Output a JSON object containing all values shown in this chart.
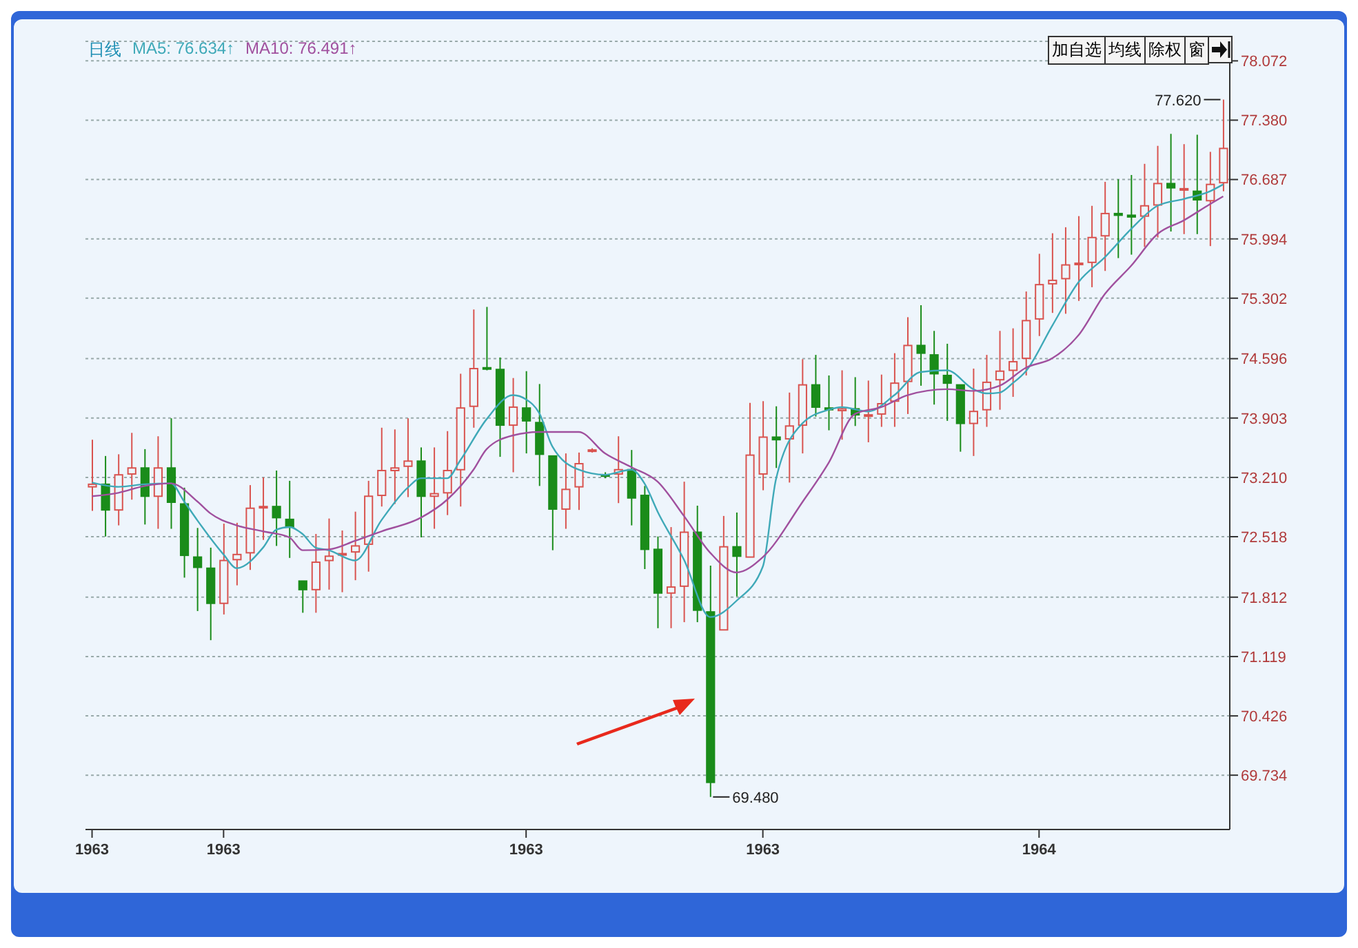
{
  "chart_data": {
    "type": "candlestick",
    "title": "日线",
    "legend": "top left",
    "grid": "y",
    "categories": [
      "1963",
      null,
      null,
      null,
      null,
      null,
      null,
      null,
      null,
      null,
      "1963",
      null,
      null,
      null,
      null,
      null,
      null,
      null,
      null,
      null,
      null,
      null,
      null,
      null,
      null,
      null,
      null,
      null,
      null,
      null,
      null,
      null,
      null,
      "1963",
      null,
      null,
      null,
      null,
      null,
      null,
      null,
      null,
      null,
      null,
      null,
      null,
      null,
      null,
      null,
      null,
      null,
      "1963",
      null,
      null,
      null,
      null,
      null,
      null,
      null,
      null,
      null,
      null,
      null,
      null,
      null,
      null,
      null,
      null,
      null,
      null,
      null,
      null,
      "1964",
      null,
      null,
      null,
      null,
      null,
      null,
      null,
      null,
      null,
      null,
      null,
      null,
      null,
      null
    ],
    "ohlc": [
      [
        73.1,
        73.65,
        72.82,
        73.13
      ],
      [
        73.13,
        73.46,
        72.52,
        72.83
      ],
      [
        72.83,
        73.48,
        72.65,
        73.24
      ],
      [
        73.25,
        73.73,
        72.95,
        73.32
      ],
      [
        73.32,
        73.54,
        72.66,
        72.99
      ],
      [
        72.99,
        73.69,
        72.61,
        73.32
      ],
      [
        73.32,
        73.9,
        72.61,
        72.92
      ],
      [
        72.9,
        73.09,
        72.04,
        72.3
      ],
      [
        72.28,
        72.62,
        71.65,
        72.16
      ],
      [
        72.15,
        72.39,
        71.31,
        71.74
      ],
      [
        71.74,
        72.67,
        71.61,
        72.24
      ],
      [
        72.25,
        72.68,
        71.95,
        72.31
      ],
      [
        72.33,
        73.12,
        72.13,
        72.85
      ],
      [
        72.86,
        73.21,
        72.48,
        72.87
      ],
      [
        72.87,
        73.29,
        72.41,
        72.74
      ],
      [
        72.72,
        73.17,
        72.27,
        72.63
      ],
      [
        72.0,
        72.0,
        71.63,
        71.9
      ],
      [
        71.9,
        72.55,
        71.63,
        72.22
      ],
      [
        72.24,
        72.73,
        71.9,
        72.29
      ],
      [
        72.31,
        72.59,
        71.87,
        72.32
      ],
      [
        72.34,
        72.81,
        72.01,
        72.41
      ],
      [
        72.43,
        73.17,
        72.11,
        72.99
      ],
      [
        73.0,
        73.79,
        72.87,
        73.29
      ],
      [
        73.29,
        73.77,
        72.9,
        73.32
      ],
      [
        73.34,
        73.9,
        72.98,
        73.4
      ],
      [
        73.4,
        73.56,
        72.51,
        72.99
      ],
      [
        72.99,
        73.56,
        72.61,
        73.02
      ],
      [
        73.03,
        73.75,
        72.77,
        73.29
      ],
      [
        73.3,
        74.42,
        72.87,
        74.02
      ],
      [
        74.04,
        75.17,
        73.79,
        74.48
      ],
      [
        74.49,
        75.2,
        74.46,
        74.48
      ],
      [
        74.47,
        74.61,
        73.45,
        73.82
      ],
      [
        73.82,
        74.37,
        73.27,
        74.03
      ],
      [
        74.02,
        74.45,
        73.49,
        73.87
      ],
      [
        73.85,
        74.3,
        73.11,
        73.48
      ],
      [
        73.46,
        73.46,
        72.36,
        72.84
      ],
      [
        72.84,
        73.49,
        72.61,
        73.07
      ],
      [
        73.1,
        73.5,
        72.83,
        73.37
      ],
      [
        73.52,
        73.55,
        73.5,
        73.53
      ],
      [
        73.24,
        73.27,
        73.2,
        73.23
      ],
      [
        73.25,
        73.69,
        72.91,
        73.3
      ],
      [
        73.3,
        73.53,
        72.65,
        72.97
      ],
      [
        73.0,
        73.11,
        72.14,
        72.37
      ],
      [
        72.37,
        72.52,
        71.45,
        71.86
      ],
      [
        71.86,
        72.63,
        71.45,
        71.93
      ],
      [
        71.94,
        73.16,
        71.52,
        72.57
      ],
      [
        72.57,
        72.88,
        71.52,
        71.66
      ],
      [
        71.64,
        72.18,
        69.48,
        69.65
      ],
      [
        71.43,
        72.76,
        71.43,
        72.4
      ],
      [
        72.4,
        72.8,
        71.82,
        72.29
      ],
      [
        72.28,
        74.08,
        72.28,
        73.47
      ],
      [
        73.25,
        74.1,
        73.06,
        73.68
      ],
      [
        73.68,
        74.04,
        73.32,
        73.65
      ],
      [
        73.66,
        74.2,
        73.15,
        73.81
      ],
      [
        73.82,
        74.59,
        73.49,
        74.29
      ],
      [
        74.29,
        74.64,
        73.92,
        74.03
      ],
      [
        74.02,
        74.4,
        73.76,
        74.0
      ],
      [
        73.99,
        74.46,
        73.65,
        74.01
      ],
      [
        74.01,
        74.38,
        73.81,
        73.94
      ],
      [
        73.93,
        74.34,
        73.62,
        73.94
      ],
      [
        73.95,
        74.41,
        73.8,
        74.07
      ],
      [
        74.1,
        74.66,
        73.8,
        74.31
      ],
      [
        74.33,
        75.08,
        73.95,
        74.75
      ],
      [
        74.75,
        75.22,
        74.28,
        74.66
      ],
      [
        74.64,
        74.92,
        74.06,
        74.42
      ],
      [
        74.4,
        74.77,
        73.87,
        74.31
      ],
      [
        74.29,
        74.29,
        73.51,
        73.84
      ],
      [
        73.84,
        74.48,
        73.46,
        73.98
      ],
      [
        74.0,
        74.64,
        73.8,
        74.32
      ],
      [
        74.35,
        74.92,
        74.0,
        74.45
      ],
      [
        74.46,
        74.95,
        74.15,
        74.56
      ],
      [
        74.6,
        75.38,
        74.4,
        75.04
      ],
      [
        75.06,
        75.82,
        74.86,
        75.46
      ],
      [
        75.47,
        76.06,
        75.13,
        75.51
      ],
      [
        75.53,
        76.13,
        75.12,
        75.69
      ],
      [
        75.7,
        76.26,
        75.27,
        75.71
      ],
      [
        75.72,
        76.38,
        75.43,
        76.01
      ],
      [
        76.03,
        76.66,
        75.62,
        76.29
      ],
      [
        76.29,
        76.69,
        75.77,
        76.27
      ],
      [
        76.27,
        76.74,
        75.81,
        76.25
      ],
      [
        76.26,
        76.87,
        75.9,
        76.38
      ],
      [
        76.39,
        77.08,
        76.01,
        76.64
      ],
      [
        76.64,
        77.22,
        76.08,
        76.59
      ],
      [
        76.57,
        77.1,
        76.05,
        76.58
      ],
      [
        76.55,
        77.21,
        76.05,
        76.45
      ],
      [
        76.44,
        77.01,
        75.91,
        76.63
      ],
      [
        76.65,
        77.62,
        76.55,
        77.05
      ]
    ],
    "colors": [
      "#d9534f",
      "#1a8c1a",
      "#d9534f",
      "#d9534f",
      "#1a8c1a",
      "#d9534f",
      "#1a8c1a",
      "#1a8c1a",
      "#1a8c1a",
      "#1a8c1a",
      "#d9534f",
      "#d9534f",
      "#d9534f",
      "#d9534f",
      "#1a8c1a",
      "#1a8c1a",
      "#1a8c1a",
      "#d9534f",
      "#d9534f",
      "#d9534f",
      "#d9534f",
      "#d9534f",
      "#d9534f",
      "#d9534f",
      "#d9534f",
      "#1a8c1a",
      "#d9534f",
      "#d9534f",
      "#d9534f",
      "#d9534f",
      "#1a8c1a",
      "#1a8c1a",
      "#d9534f",
      "#1a8c1a",
      "#1a8c1a",
      "#1a8c1a",
      "#d9534f",
      "#d9534f",
      "#d9534f",
      "#1a8c1a",
      "#d9534f",
      "#1a8c1a",
      "#1a8c1a",
      "#1a8c1a",
      "#d9534f",
      "#d9534f",
      "#1a8c1a",
      "#1a8c1a",
      "#d9534f",
      "#1a8c1a",
      "#d9534f",
      "#d9534f",
      "#1a8c1a",
      "#d9534f",
      "#d9534f",
      "#1a8c1a",
      "#1a8c1a",
      "#d9534f",
      "#1a8c1a",
      "#d9534f",
      "#d9534f",
      "#d9534f",
      "#d9534f",
      "#1a8c1a",
      "#1a8c1a",
      "#1a8c1a",
      "#1a8c1a",
      "#d9534f",
      "#d9534f",
      "#d9534f",
      "#d9534f",
      "#d9534f",
      "#d9534f",
      "#d9534f",
      "#d9534f",
      "#d9534f",
      "#d9534f",
      "#d9534f",
      "#1a8c1a",
      "#1a8c1a",
      "#d9534f",
      "#d9534f",
      "#1a8c1a",
      "#d9534f",
      "#1a8c1a",
      "#d9534f",
      "#d9534f"
    ],
    "series": [
      {
        "name": "MA5: 76.634↑",
        "type": "line",
        "color": "#3fa9b8",
        "values": [
          73.15,
          null,
          73.1,
          null,
          73.13,
          null,
          73.14,
          72.93,
          72.71,
          null,
          72.31,
          72.15,
          null,
          72.39,
          72.6,
          72.63,
          72.55,
          72.39,
          72.36,
          null,
          72.24,
          null,
          72.71,
          null,
          73.09,
          73.2,
          null,
          73.2,
          73.41,
          null,
          73.89,
          null,
          74.17,
          74.12,
          73.96,
          73.57,
          null,
          73.3,
          null,
          73.24,
          null,
          73.3,
          73.14,
          72.81,
          null,
          72.25,
          null,
          71.58,
          null,
          71.77,
          null,
          72.17,
          73.19,
          null,
          73.84,
          null,
          74.0,
          74.03,
          null,
          73.98,
          null,
          74.17,
          null,
          74.44,
          null,
          74.46,
          null,
          74.24,
          74.19,
          74.2,
          74.31,
          74.45,
          null,
          74.98,
          null,
          75.49,
          null,
          75.78,
          null,
          76.11,
          null,
          76.38,
          null,
          76.46,
          null,
          76.55,
          76.63
        ]
      },
      {
        "name": "MA10: 76.491↑",
        "type": "line",
        "color": "#a0509e",
        "values": [
          72.99,
          null,
          73.03,
          null,
          73.11,
          null,
          73.14,
          null,
          72.93,
          72.79,
          null,
          72.65,
          null,
          72.58,
          null,
          72.51,
          72.36,
          null,
          72.37,
          null,
          72.47,
          null,
          72.58,
          null,
          null,
          72.74,
          null,
          72.95,
          null,
          73.3,
          73.54,
          null,
          73.7,
          null,
          73.74,
          null,
          null,
          73.74,
          null,
          73.49,
          null,
          73.33,
          null,
          73.16,
          null,
          72.76,
          null,
          72.33,
          null,
          72.1,
          null,
          72.28,
          null,
          null,
          72.92,
          null,
          73.38,
          null,
          73.95,
          null,
          74.03,
          null,
          74.17,
          null,
          null,
          74.24,
          null,
          74.22,
          null,
          74.28,
          null,
          74.49,
          null,
          74.6,
          null,
          74.87,
          null,
          75.35,
          null,
          75.68,
          null,
          76.05,
          null,
          76.21,
          null,
          76.4,
          76.49
        ]
      }
    ],
    "ylim": [
      69.1,
      78.3
    ],
    "yticks": [
      78.072,
      {
        "value": 77.38,
        "label": "77.380"
      },
      76.687,
      75.994,
      75.302,
      74.596,
      73.903,
      {
        "value": 73.21,
        "label": "73.210"
      },
      72.518,
      71.812,
      71.119,
      70.426,
      69.734
    ],
    "annotations": [
      "77.620",
      "69.480",
      "加自选",
      "均线",
      "除权",
      "窗"
    ]
  }
}
